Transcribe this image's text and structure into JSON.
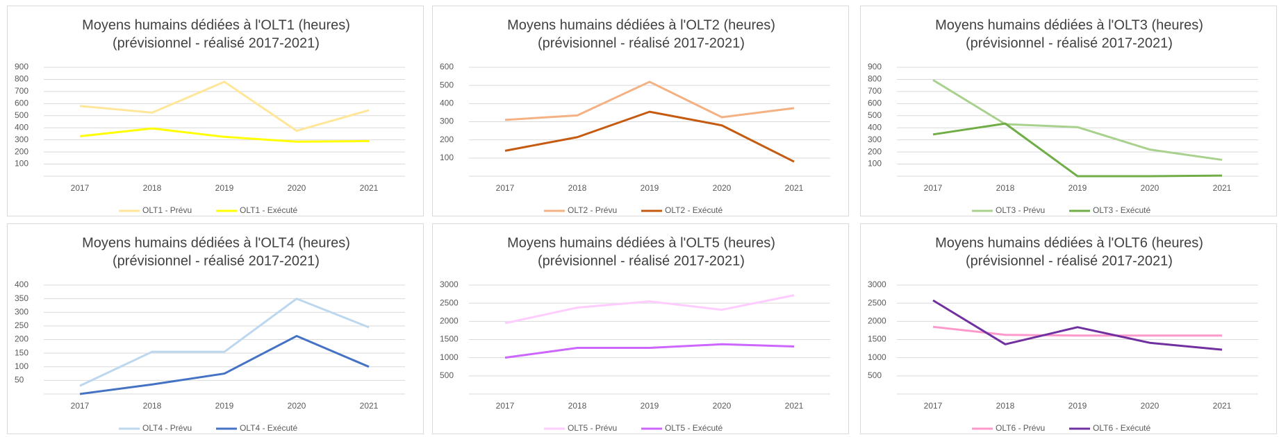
{
  "chart_data": [
    {
      "type": "line",
      "title": "Moyens humains dédiées à l'OLT1 (heures)",
      "subtitle": "(prévisionnel - réalisé 2017-2021)",
      "categories": [
        "2017",
        "2018",
        "2019",
        "2020",
        "2021"
      ],
      "ylim": [
        0,
        900
      ],
      "yticks": [
        100,
        200,
        300,
        400,
        500,
        600,
        700,
        800,
        900
      ],
      "grid": true,
      "series": [
        {
          "name": "OLT1 - Prévu",
          "color": "#ffe699",
          "values": [
            580,
            525,
            780,
            375,
            545
          ]
        },
        {
          "name": "OLT1 - Exécuté",
          "color": "#ffff00",
          "values": [
            330,
            395,
            325,
            285,
            290
          ]
        }
      ]
    },
    {
      "type": "line",
      "title": "Moyens humains dédiées à l'OLT2 (heures)",
      "subtitle": "(prévisionnel - réalisé 2017-2021)",
      "categories": [
        "2017",
        "2018",
        "2019",
        "2020",
        "2021"
      ],
      "ylim": [
        0,
        600
      ],
      "yticks": [
        100,
        200,
        300,
        400,
        500,
        600
      ],
      "grid": true,
      "series": [
        {
          "name": "OLT2 - Prévu",
          "color": "#f4b183",
          "values": [
            310,
            335,
            520,
            325,
            375
          ]
        },
        {
          "name": "OLT2 - Exécuté",
          "color": "#c55a11",
          "values": [
            140,
            215,
            355,
            280,
            80
          ]
        }
      ]
    },
    {
      "type": "line",
      "title": "Moyens humains dédiées à l'OLT3 (heures)",
      "subtitle": "(prévisionnel - réalisé 2017-2021)",
      "categories": [
        "2017",
        "2018",
        "2019",
        "2020",
        "2021"
      ],
      "ylim": [
        0,
        900
      ],
      "yticks": [
        100,
        200,
        300,
        400,
        500,
        600,
        700,
        800,
        900
      ],
      "grid": true,
      "series": [
        {
          "name": "OLT3 - Prévu",
          "color": "#a9d18e",
          "values": [
            795,
            430,
            405,
            220,
            135
          ]
        },
        {
          "name": "OLT3 - Exécuté",
          "color": "#70ad47",
          "values": [
            345,
            435,
            0,
            0,
            5
          ]
        }
      ]
    },
    {
      "type": "line",
      "title": "Moyens humains dédiées à l'OLT4 (heures)",
      "subtitle": "(prévisionnel - réalisé 2017-2021)",
      "categories": [
        "2017",
        "2018",
        "2019",
        "2020",
        "2021"
      ],
      "ylim": [
        0,
        400
      ],
      "yticks": [
        50,
        100,
        150,
        200,
        250,
        300,
        350,
        400
      ],
      "grid": true,
      "series": [
        {
          "name": "OLT4 - Prévu",
          "color": "#bdd7ee",
          "values": [
            30,
            155,
            155,
            350,
            245
          ]
        },
        {
          "name": "OLT4 - Exécuté",
          "color": "#4472c4",
          "values": [
            0,
            35,
            75,
            213,
            100
          ]
        }
      ]
    },
    {
      "type": "line",
      "title": "Moyens humains dédiées à l'OLT5 (heures)",
      "subtitle": "(prévisionnel - réalisé 2017-2021)",
      "categories": [
        "2017",
        "2018",
        "2019",
        "2020",
        "2021"
      ],
      "ylim": [
        0,
        3000
      ],
      "yticks": [
        500,
        1000,
        1500,
        2000,
        2500,
        3000
      ],
      "grid": true,
      "series": [
        {
          "name": "OLT5 - Prévu",
          "color": "#ffccff",
          "values": [
            1950,
            2380,
            2550,
            2320,
            2720
          ]
        },
        {
          "name": "OLT5 - Exécuté",
          "color": "#cc66ff",
          "values": [
            1000,
            1270,
            1270,
            1370,
            1310
          ]
        }
      ]
    },
    {
      "type": "line",
      "title": "Moyens humains dédiées à l'OLT6 (heures)",
      "subtitle": "(prévisionnel - réalisé 2017-2021)",
      "categories": [
        "2017",
        "2018",
        "2019",
        "2020",
        "2021"
      ],
      "ylim": [
        0,
        3000
      ],
      "yticks": [
        500,
        1000,
        1500,
        2000,
        2500,
        3000
      ],
      "grid": true,
      "series": [
        {
          "name": "OLT6 - Prévu",
          "color": "#ff99cc",
          "values": [
            1850,
            1630,
            1610,
            1610,
            1610
          ]
        },
        {
          "name": "OLT6 - Exécuté",
          "color": "#7030a0",
          "values": [
            2580,
            1370,
            1840,
            1410,
            1220
          ]
        }
      ]
    }
  ]
}
